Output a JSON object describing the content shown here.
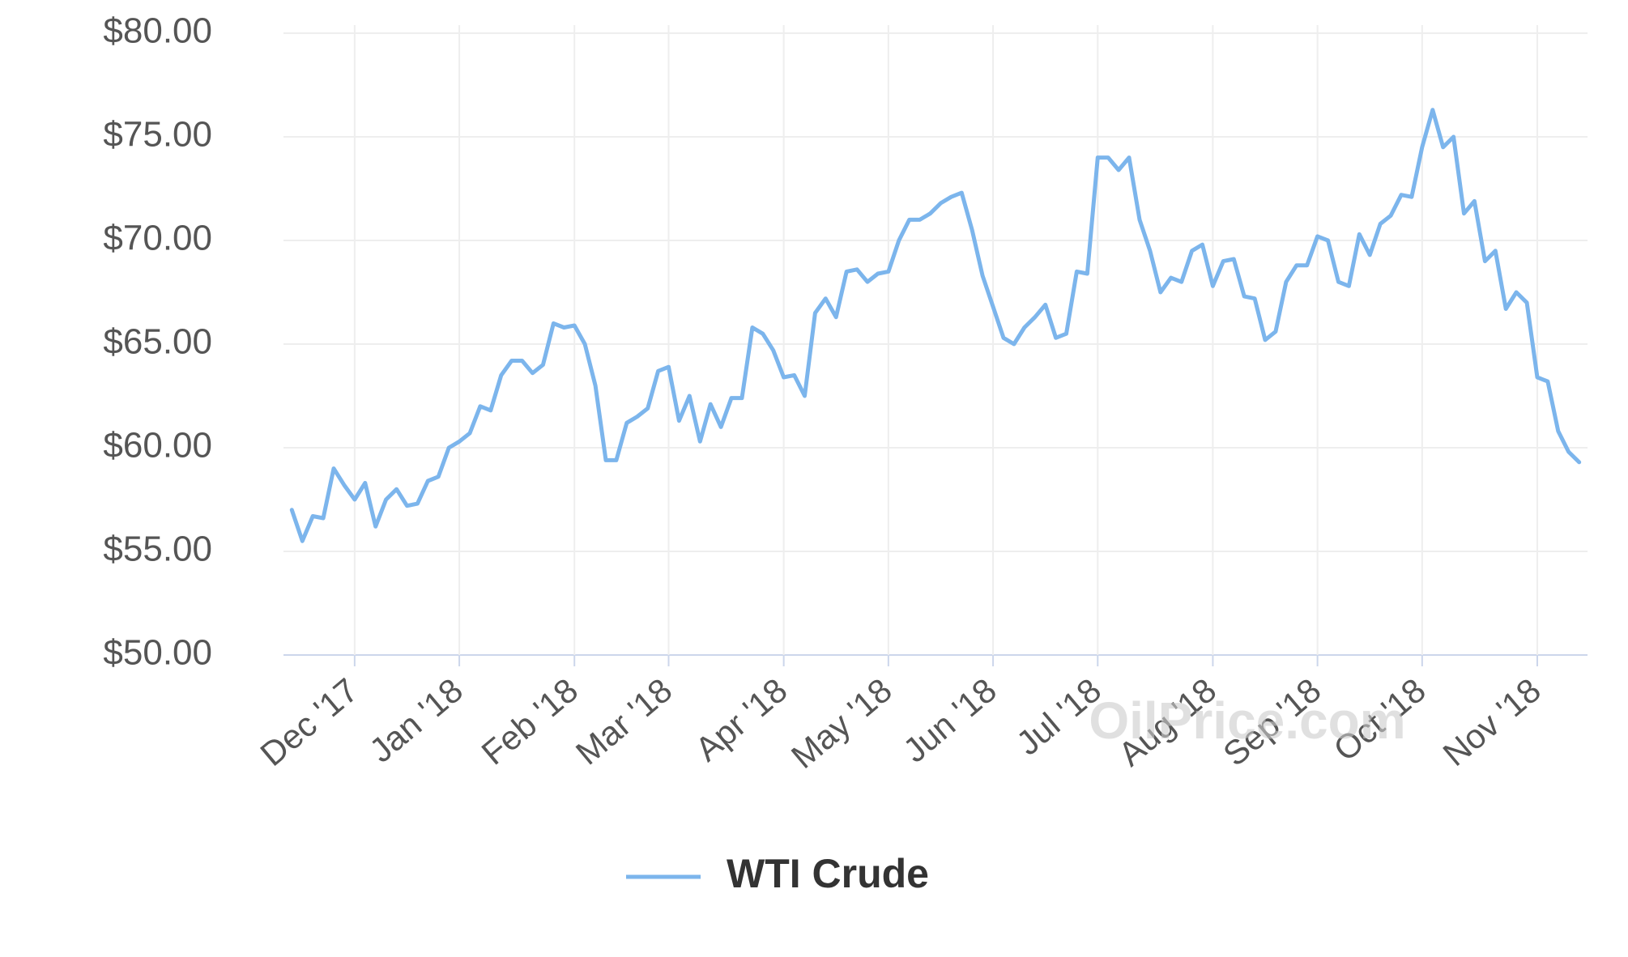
{
  "chart_data": {
    "type": "line",
    "categories": [
      null,
      null,
      null,
      null,
      null,
      null,
      "Dec '17",
      null,
      null,
      null,
      null,
      null,
      null,
      null,
      null,
      null,
      "Jan '18",
      null,
      null,
      null,
      null,
      null,
      null,
      null,
      null,
      null,
      null,
      "Feb '18",
      null,
      null,
      null,
      null,
      null,
      null,
      null,
      null,
      "Mar '18",
      null,
      null,
      null,
      null,
      null,
      null,
      null,
      null,
      null,
      null,
      "Apr '18",
      null,
      null,
      null,
      null,
      null,
      null,
      null,
      null,
      null,
      "May '18",
      null,
      null,
      null,
      null,
      null,
      null,
      null,
      null,
      null,
      "Jun '18",
      null,
      null,
      null,
      null,
      null,
      null,
      null,
      null,
      null,
      "Jul '18",
      null,
      null,
      null,
      null,
      null,
      null,
      null,
      null,
      null,
      null,
      "Aug '18",
      null,
      null,
      null,
      null,
      null,
      null,
      null,
      null,
      null,
      "Sep '18",
      null,
      null,
      null,
      null,
      null,
      null,
      null,
      null,
      null,
      "Oct '18",
      null,
      null,
      null,
      null,
      null,
      null,
      null,
      null,
      null,
      null,
      "Nov '18",
      null,
      null,
      null,
      null
    ],
    "series": [
      {
        "name": "WTI Crude",
        "color": "#7cb5ec",
        "values": [
          57,
          55.5,
          56.7,
          56.6,
          59,
          58.2,
          57.5,
          58.3,
          56.2,
          57.5,
          58,
          57.2,
          57.3,
          58.4,
          58.6,
          60,
          60.3,
          60.7,
          62,
          61.8,
          63.5,
          64.2,
          64.2,
          63.6,
          64,
          66,
          65.8,
          65.9,
          65,
          63,
          59.4,
          59.4,
          61.2,
          61.5,
          61.9,
          63.7,
          63.9,
          61.3,
          62.5,
          60.3,
          62.1,
          61,
          62.4,
          62.4,
          65.8,
          65.5,
          64.7,
          63.4,
          63.5,
          62.5,
          66.5,
          67.2,
          66.3,
          68.5,
          68.6,
          68,
          68.4,
          68.5,
          70,
          71,
          71,
          71.3,
          71.8,
          72.1,
          72.3,
          70.5,
          68.3,
          66.8,
          65.3,
          65,
          65.8,
          66.3,
          66.9,
          65.3,
          65.5,
          68.5,
          68.4,
          74,
          74,
          73.4,
          74,
          71,
          69.5,
          67.5,
          68.2,
          68,
          69.5,
          69.8,
          67.8,
          69,
          69.1,
          67.3,
          67.2,
          65.2,
          65.6,
          68,
          68.8,
          68.8,
          70.2,
          70,
          68,
          67.8,
          70.3,
          69.3,
          70.8,
          71.2,
          72.2,
          72.1,
          74.5,
          76.3,
          74.5,
          75,
          71.3,
          71.9,
          69,
          69.5,
          66.7,
          67.5,
          67,
          63.4,
          63.2,
          60.8,
          59.8,
          59.3
        ]
      }
    ],
    "ylim": [
      50,
      80
    ],
    "yticks": [
      {
        "value": 50,
        "label": "$50.00"
      },
      {
        "value": 55,
        "label": "$55.00"
      },
      {
        "value": 60,
        "label": "$60.00"
      },
      {
        "value": 65,
        "label": "$65.00"
      },
      {
        "value": 70,
        "label": "$70.00"
      },
      {
        "value": 75,
        "label": "$75.00"
      },
      {
        "value": 80,
        "label": "$80.00"
      }
    ],
    "grid": true,
    "legend": "bottom",
    "watermark": "OilPrice.com"
  }
}
